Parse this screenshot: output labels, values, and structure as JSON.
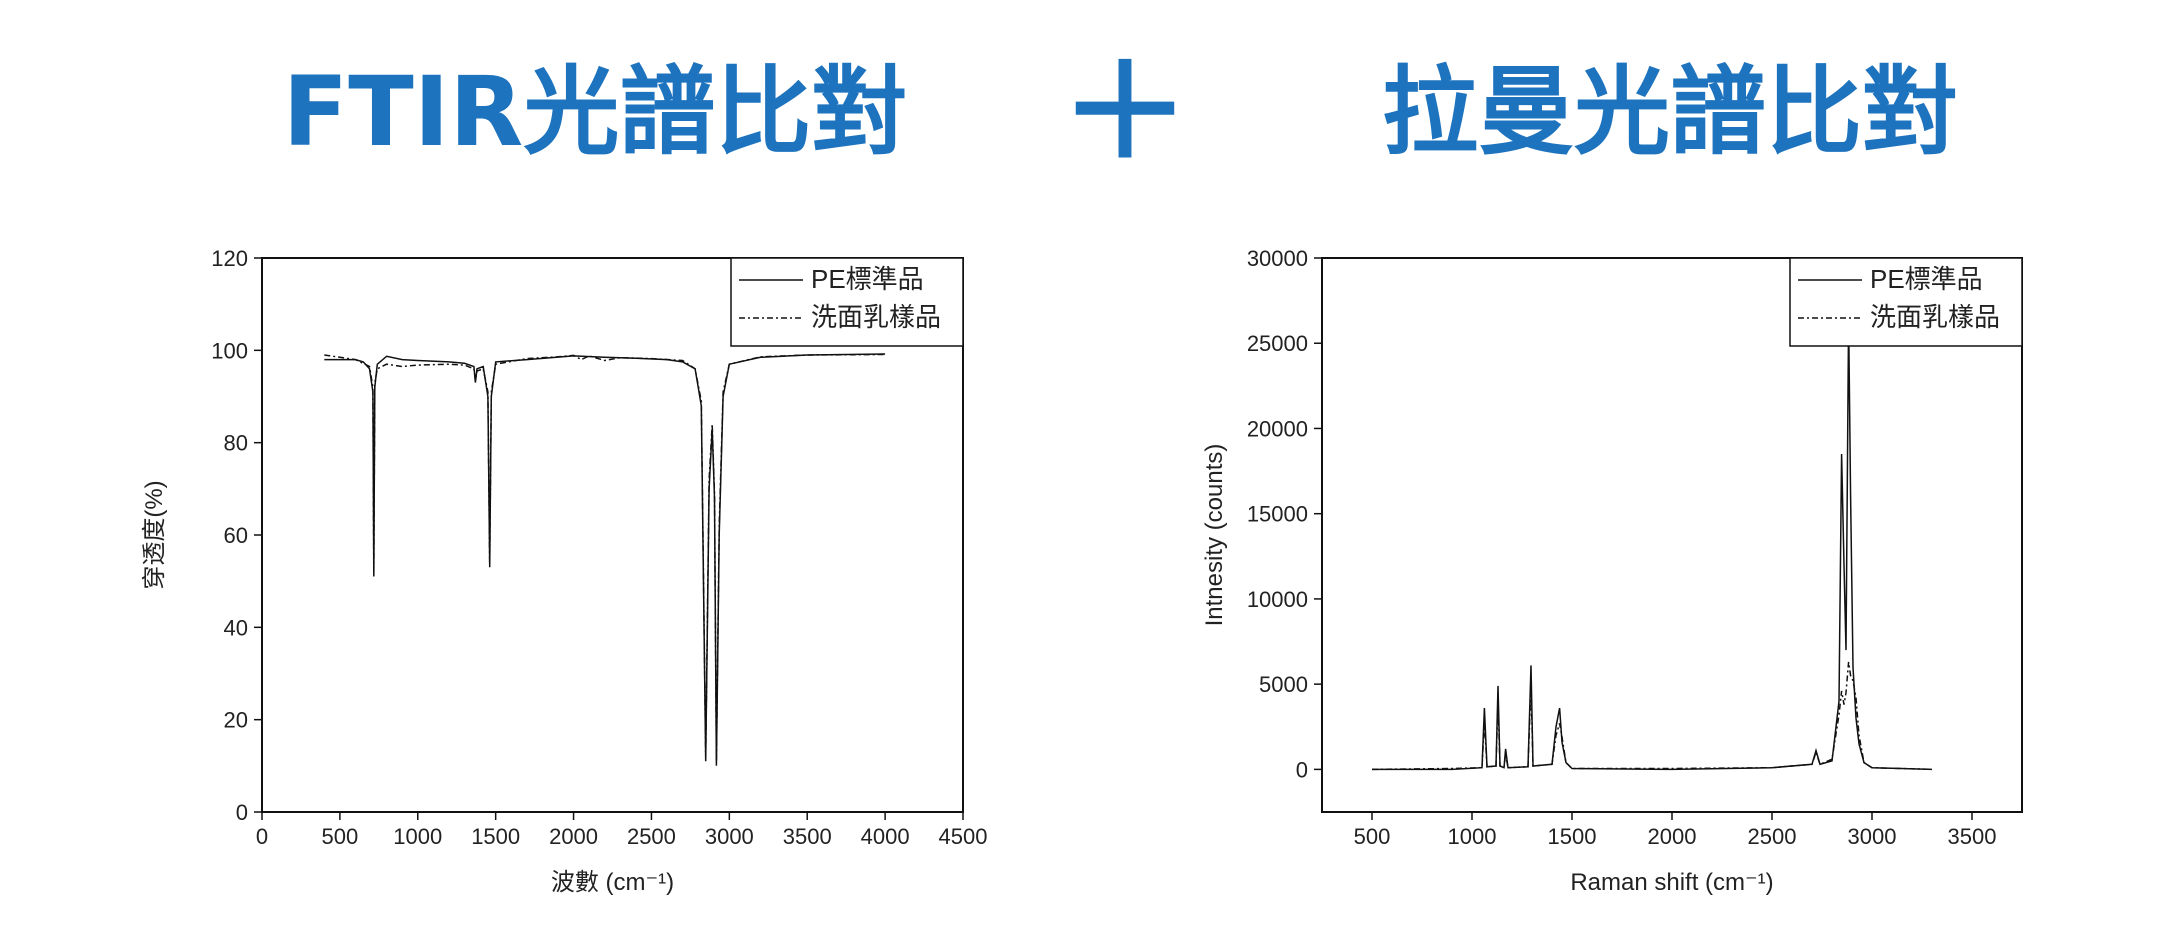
{
  "headings": {
    "left": "FTIR光譜比對",
    "plus": "＋",
    "right": "拉曼光譜比對"
  },
  "colors": {
    "heading": "#1e73be",
    "line": "#111111"
  },
  "chart_data": [
    {
      "type": "line",
      "xlabel": "波數 (cm⁻¹)",
      "ylabel": "穿透度(%)",
      "xlim": [
        0,
        4500
      ],
      "ylim": [
        0,
        120
      ],
      "xticks": [
        0,
        500,
        1000,
        1500,
        2000,
        2500,
        3000,
        3500,
        4000,
        4500
      ],
      "yticks": [
        0,
        20,
        40,
        60,
        80,
        100,
        120
      ],
      "grid": false,
      "legend_position": "top-right",
      "series": [
        {
          "name": "PE標準品",
          "style": "solid",
          "points": [
            [
              400,
              98
            ],
            [
              500,
              98
            ],
            [
              600,
              98
            ],
            [
              650,
              97.5
            ],
            [
              690,
              96
            ],
            [
              712,
              91
            ],
            [
              718,
              51
            ],
            [
              724,
              92
            ],
            [
              740,
              97
            ],
            [
              800,
              98.7
            ],
            [
              900,
              98
            ],
            [
              1000,
              97.8
            ],
            [
              1200,
              97.5
            ],
            [
              1300,
              97.2
            ],
            [
              1360,
              96.5
            ],
            [
              1370,
              93
            ],
            [
              1380,
              96
            ],
            [
              1420,
              96.5
            ],
            [
              1450,
              90
            ],
            [
              1462,
              53
            ],
            [
              1472,
              90
            ],
            [
              1500,
              97.5
            ],
            [
              1700,
              98
            ],
            [
              2000,
              98.8
            ],
            [
              2200,
              98.5
            ],
            [
              2400,
              98.3
            ],
            [
              2600,
              98
            ],
            [
              2700,
              97.5
            ],
            [
              2780,
              96
            ],
            [
              2820,
              88
            ],
            [
              2848,
              11
            ],
            [
              2870,
              70
            ],
            [
              2890,
              83
            ],
            [
              2905,
              68
            ],
            [
              2917,
              10
            ],
            [
              2935,
              60
            ],
            [
              2960,
              90
            ],
            [
              3000,
              97
            ],
            [
              3200,
              98.5
            ],
            [
              3500,
              99
            ],
            [
              4000,
              99.2
            ]
          ]
        },
        {
          "name": "洗面乳樣品",
          "style": "dashdot",
          "points": [
            [
              400,
              99
            ],
            [
              500,
              98.5
            ],
            [
              600,
              98
            ],
            [
              690,
              96.5
            ],
            [
              712,
              92
            ],
            [
              718,
              52
            ],
            [
              724,
              93
            ],
            [
              740,
              96
            ],
            [
              800,
              97
            ],
            [
              900,
              96.5
            ],
            [
              1000,
              96.8
            ],
            [
              1200,
              97
            ],
            [
              1300,
              96.8
            ],
            [
              1360,
              96
            ],
            [
              1370,
              93.5
            ],
            [
              1380,
              95.5
            ],
            [
              1420,
              96
            ],
            [
              1450,
              91
            ],
            [
              1462,
              54
            ],
            [
              1472,
              91
            ],
            [
              1500,
              97
            ],
            [
              1700,
              98.2
            ],
            [
              1900,
              98.6
            ],
            [
              2000,
              98.9
            ],
            [
              2050,
              98
            ],
            [
              2100,
              98.8
            ],
            [
              2200,
              97.8
            ],
            [
              2300,
              98.4
            ],
            [
              2500,
              98.2
            ],
            [
              2700,
              97.8
            ],
            [
              2780,
              96
            ],
            [
              2820,
              89
            ],
            [
              2848,
              12
            ],
            [
              2870,
              72
            ],
            [
              2890,
              84
            ],
            [
              2905,
              69
            ],
            [
              2917,
              11
            ],
            [
              2935,
              62
            ],
            [
              2960,
              91
            ],
            [
              3000,
              97
            ],
            [
              3200,
              98.6
            ],
            [
              3500,
              99
            ],
            [
              4000,
              99.1
            ]
          ]
        }
      ]
    },
    {
      "type": "line",
      "xlabel": "Raman shift (cm⁻¹)",
      "ylabel": "Intnesity (counts)",
      "xlim": [
        250,
        3750
      ],
      "ylim": [
        -2500,
        30000
      ],
      "xticks": [
        500,
        1000,
        1500,
        2000,
        2500,
        3000,
        3500
      ],
      "yticks": [
        0,
        5000,
        10000,
        15000,
        20000,
        25000,
        30000
      ],
      "grid": false,
      "legend_position": "top-right",
      "series": [
        {
          "name": "PE標準品",
          "style": "solid",
          "points": [
            [
              500,
              0
            ],
            [
              900,
              0
            ],
            [
              1050,
              100
            ],
            [
              1062,
              3600
            ],
            [
              1075,
              150
            ],
            [
              1120,
              200
            ],
            [
              1130,
              4900
            ],
            [
              1140,
              200
            ],
            [
              1160,
              100
            ],
            [
              1168,
              1200
            ],
            [
              1180,
              100
            ],
            [
              1280,
              150
            ],
            [
              1295,
              6100
            ],
            [
              1305,
              200
            ],
            [
              1400,
              300
            ],
            [
              1420,
              2500
            ],
            [
              1438,
              3600
            ],
            [
              1450,
              1600
            ],
            [
              1470,
              400
            ],
            [
              1500,
              50
            ],
            [
              2000,
              0
            ],
            [
              2500,
              100
            ],
            [
              2700,
              300
            ],
            [
              2720,
              1100
            ],
            [
              2740,
              300
            ],
            [
              2800,
              500
            ],
            [
              2835,
              4000
            ],
            [
              2848,
              18500
            ],
            [
              2860,
              12000
            ],
            [
              2870,
              7000
            ],
            [
              2883,
              26500
            ],
            [
              2893,
              16000
            ],
            [
              2905,
              6000
            ],
            [
              2920,
              3000
            ],
            [
              2935,
              1500
            ],
            [
              2960,
              400
            ],
            [
              3000,
              100
            ],
            [
              3300,
              0
            ]
          ]
        },
        {
          "name": "洗面乳樣品",
          "style": "dashdot",
          "points": [
            [
              500,
              0
            ],
            [
              900,
              50
            ],
            [
              1050,
              100
            ],
            [
              1062,
              2800
            ],
            [
              1075,
              150
            ],
            [
              1120,
              200
            ],
            [
              1130,
              4000
            ],
            [
              1140,
              200
            ],
            [
              1160,
              100
            ],
            [
              1168,
              900
            ],
            [
              1180,
              100
            ],
            [
              1280,
              150
            ],
            [
              1295,
              5000
            ],
            [
              1305,
              200
            ],
            [
              1400,
              300
            ],
            [
              1420,
              2000
            ],
            [
              1438,
              2700
            ],
            [
              1450,
              1900
            ],
            [
              1470,
              400
            ],
            [
              1500,
              50
            ],
            [
              2000,
              50
            ],
            [
              2500,
              100
            ],
            [
              2700,
              300
            ],
            [
              2720,
              1000
            ],
            [
              2740,
              300
            ],
            [
              2800,
              600
            ],
            [
              2835,
              3200
            ],
            [
              2848,
              4600
            ],
            [
              2860,
              3800
            ],
            [
              2870,
              4500
            ],
            [
              2883,
              6300
            ],
            [
              2893,
              5500
            ],
            [
              2905,
              5200
            ],
            [
              2920,
              4200
            ],
            [
              2935,
              2000
            ],
            [
              2960,
              400
            ],
            [
              3000,
              100
            ],
            [
              3300,
              0
            ]
          ]
        }
      ]
    }
  ]
}
